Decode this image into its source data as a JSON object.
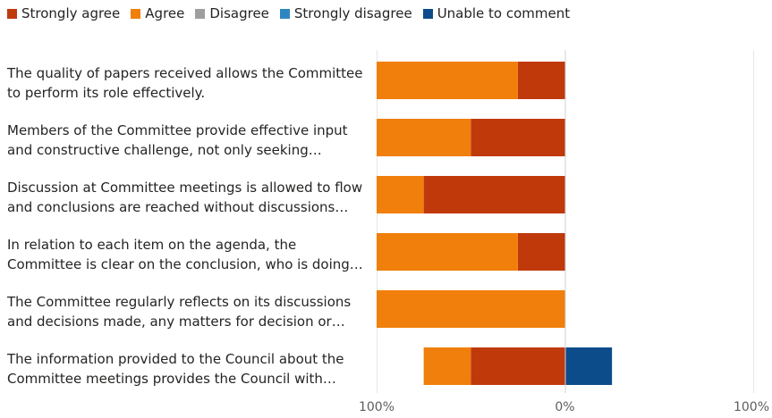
{
  "chart_data": {
    "type": "bar",
    "orientation": "horizontal",
    "stacked": "diverging",
    "legend_position": "top-left",
    "grid": true,
    "xlim": [
      -100,
      100
    ],
    "x_ticks": [
      {
        "value": -100,
        "label": "100%"
      },
      {
        "value": 0,
        "label": "0%"
      },
      {
        "value": 100,
        "label": "100%"
      }
    ],
    "categories": [
      [
        "The quality of papers received allows the Committee",
        "to perform its role effectively."
      ],
      [
        "Members of the Committee provide effective input",
        "and constructive challenge, not only seeking…"
      ],
      [
        "Discussion at Committee meetings is allowed to flow",
        "and conclusions are reached without discussions…"
      ],
      [
        "In relation to each item on the agenda, the",
        "Committee is clear on the conclusion, who is doing…"
      ],
      [
        "The Committee regularly reflects on its discussions",
        "and decisions made, any matters for decision or…"
      ],
      [
        "The information provided to the Council about the",
        "Committee meetings provides the Council with…"
      ]
    ],
    "series": [
      {
        "name": "Strongly agree",
        "color": "#c0390b",
        "side": "negative",
        "values": [
          25,
          50,
          75,
          25,
          0,
          50
        ]
      },
      {
        "name": "Agree",
        "color": "#f07f0b",
        "side": "negative",
        "values": [
          75,
          50,
          25,
          75,
          100,
          25
        ]
      },
      {
        "name": "Disagree",
        "color": "#9e9e9e",
        "side": "positive",
        "values": [
          0,
          0,
          0,
          0,
          0,
          0
        ]
      },
      {
        "name": "Strongly disagree",
        "color": "#2e86c1",
        "side": "positive",
        "values": [
          0,
          0,
          0,
          0,
          0,
          0
        ]
      },
      {
        "name": "Unable to comment",
        "color": "#0d4c8b",
        "side": "positive",
        "values": [
          0,
          0,
          0,
          0,
          0,
          25
        ]
      }
    ]
  }
}
